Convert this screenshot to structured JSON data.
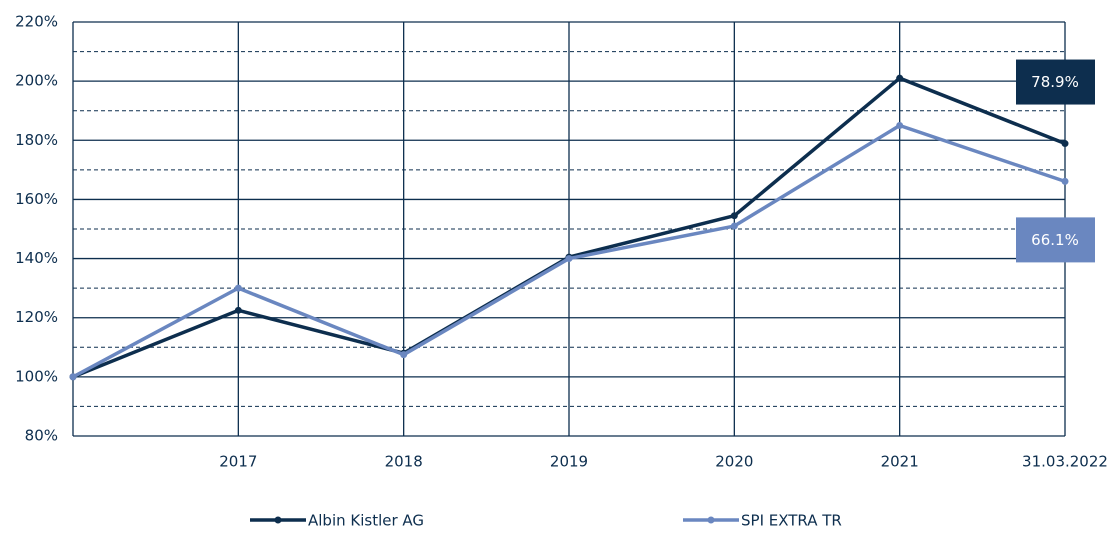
{
  "chart_data": {
    "type": "line",
    "categories": [
      null,
      "2017",
      "2018",
      "2019",
      "2020",
      "2021",
      "31.03.2022"
    ],
    "series": [
      {
        "name": "Albin Kistler AG",
        "color": "#0d2e4e",
        "values": [
          100,
          122.5,
          108,
          140.5,
          154.5,
          201,
          178.9
        ],
        "value_labels": [
          null,
          null,
          null,
          null,
          null,
          null,
          "78.9%"
        ]
      },
      {
        "name": "SPI EXTRA TR",
        "color": "#6a87c0",
        "values": [
          100,
          130,
          107.5,
          140,
          151,
          185,
          166.1
        ],
        "value_labels": [
          null,
          null,
          null,
          null,
          null,
          null,
          "66.1%"
        ]
      }
    ],
    "ylim": [
      80,
      220
    ],
    "yticks": [
      {
        "value": 80,
        "label": "80%"
      },
      {
        "value": 100,
        "label": "100%"
      },
      {
        "value": 120,
        "label": "120%"
      },
      {
        "value": 140,
        "label": "140%"
      },
      {
        "value": 160,
        "label": "160%"
      },
      {
        "value": 180,
        "label": "180%"
      },
      {
        "value": 200,
        "label": "200%"
      },
      {
        "value": 220,
        "label": "220%"
      }
    ],
    "minor_gridlines": [
      90,
      110,
      130,
      150,
      170,
      190,
      210
    ],
    "grid": true,
    "legend": "bottom"
  }
}
